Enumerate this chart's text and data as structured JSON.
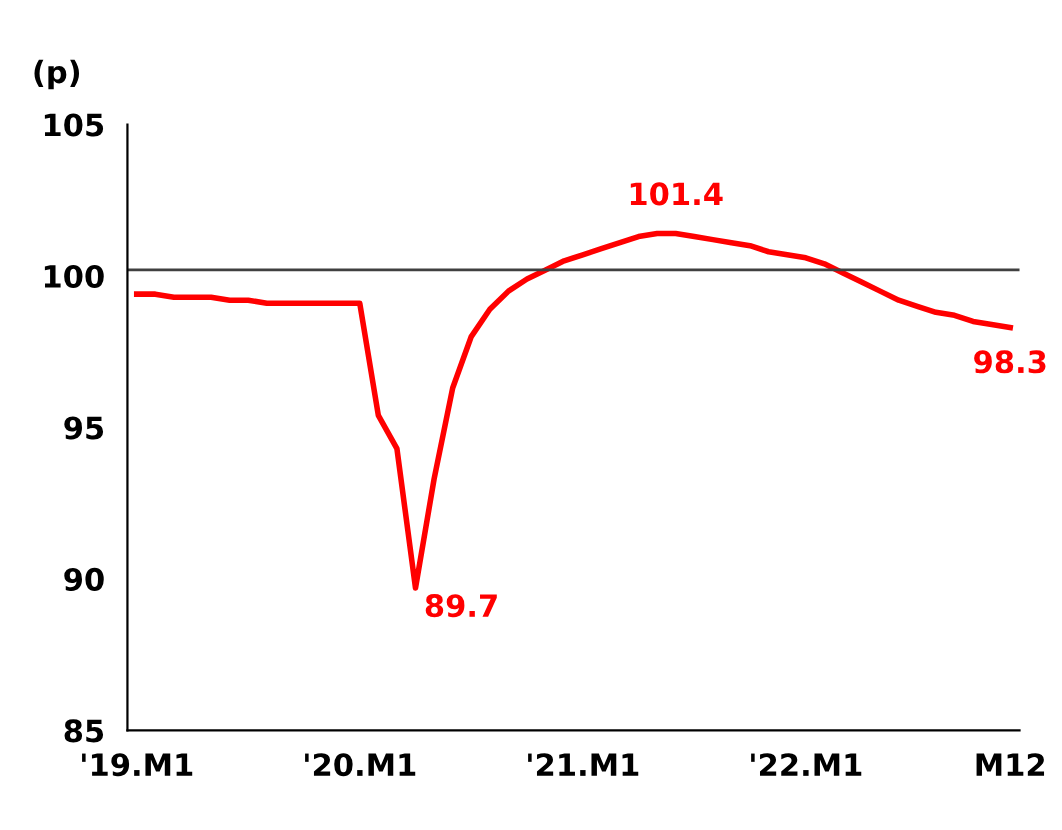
{
  "chart_data": {
    "type": "line",
    "ylabel": "(p)",
    "categories": [
      "'19.M1",
      null,
      null,
      null,
      null,
      null,
      null,
      null,
      null,
      null,
      null,
      null,
      "'20.M1",
      null,
      null,
      null,
      null,
      null,
      null,
      null,
      null,
      null,
      null,
      null,
      "'21.M1",
      null,
      null,
      null,
      null,
      null,
      null,
      null,
      null,
      null,
      null,
      null,
      "'22.M1",
      null,
      null,
      null,
      null,
      null,
      null,
      null,
      null,
      null,
      null,
      "M12"
    ],
    "series": [
      {
        "color": "#ff0000",
        "values": [
          99.4,
          99.4,
          99.3,
          99.3,
          99.3,
          99.2,
          99.2,
          99.1,
          99.1,
          99.1,
          99.1,
          99.1,
          99.1,
          95.4,
          94.3,
          89.7,
          93.3,
          96.3,
          98.0,
          98.9,
          99.5,
          99.9,
          100.2,
          100.5,
          100.7,
          100.9,
          101.1,
          101.3,
          101.4,
          101.4,
          101.3,
          101.2,
          101.1,
          101.0,
          100.8,
          100.7,
          100.6,
          100.4,
          100.1,
          99.8,
          99.5,
          99.2,
          99.0,
          98.8,
          98.7,
          98.5,
          98.4,
          98.3
        ],
        "value_labels": [
          null,
          null,
          null,
          null,
          null,
          null,
          null,
          null,
          null,
          null,
          null,
          null,
          null,
          null,
          null,
          "89.7",
          null,
          null,
          null,
          null,
          null,
          null,
          null,
          null,
          null,
          null,
          null,
          null,
          null,
          "101.4",
          null,
          null,
          null,
          null,
          null,
          null,
          null,
          null,
          null,
          null,
          null,
          null,
          null,
          null,
          null,
          null,
          null,
          "98.3"
        ]
      }
    ],
    "ref_lines": [
      {
        "axis": "y",
        "value": 100.2,
        "color": "#404040"
      }
    ],
    "ylim": [
      85,
      105
    ],
    "yticks": [
      85,
      90,
      95,
      100,
      105
    ],
    "grid": false,
    "legend": false
  }
}
